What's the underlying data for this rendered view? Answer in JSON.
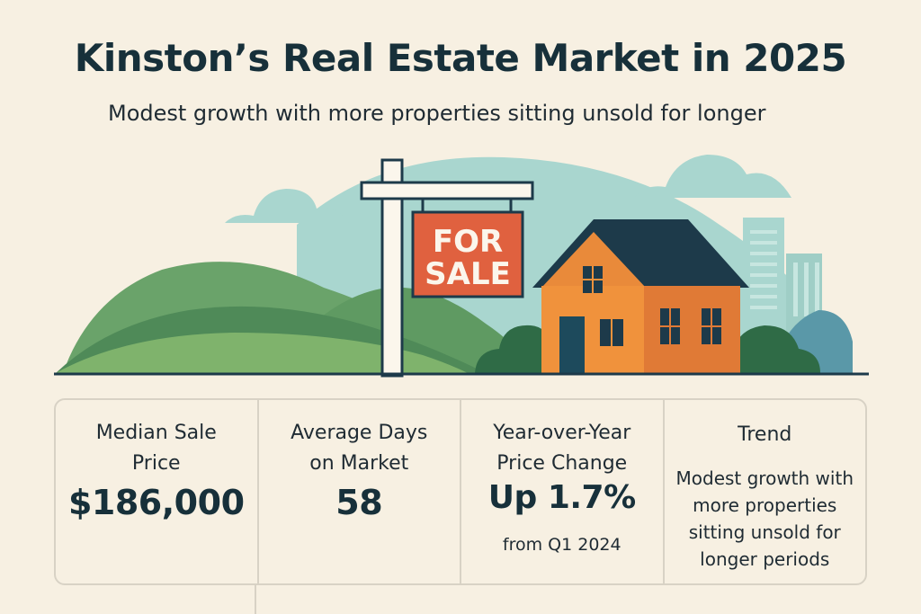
{
  "header": {
    "title": "Kinston’s Real Estate Market in 2025",
    "subtitle": "Modest growth with more properties sitting unsold for longer"
  },
  "sign": {
    "line1": "FOR",
    "line2": "SALE"
  },
  "stats": [
    {
      "label": "Median Sale Price",
      "value": "$186,000"
    },
    {
      "label": "Average Days on Market",
      "value": "58"
    },
    {
      "label": "Year-over-Year Price Change",
      "value": "Up 1.7%",
      "sub": "from Q1 2024"
    },
    {
      "label": "Trend",
      "text": "Modest growth with more properties sitting unsold for longer periods"
    }
  ],
  "colors": {
    "background": "#f7f0e2",
    "sign": "#e0613f",
    "house": "#e98a3a",
    "roof": "#1d3a4a",
    "hills": "#5c9a5e",
    "sky_hill": "#a9d6cf"
  }
}
